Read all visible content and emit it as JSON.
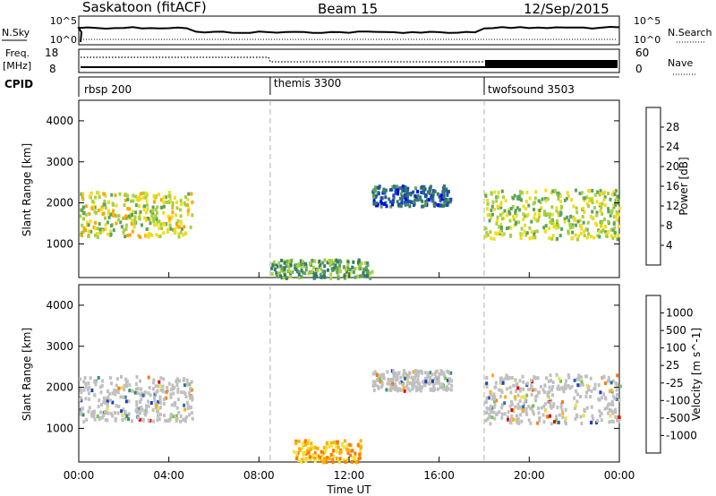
{
  "header": {
    "station": "Saskatoon (fitACF)",
    "beam": "Beam 15",
    "date": "12/Sep/2015"
  },
  "status_panels": {
    "nsky_label": "N.Sky",
    "nsky_ticks": [
      "10^5",
      "10^0"
    ],
    "nsearch_label": "N.Search",
    "nsearch_ticks": [
      "10^5",
      "10^0"
    ],
    "freq_label": "Freq.",
    "freq_unit": "[MHz]",
    "freq_ticks": [
      "18",
      "8"
    ],
    "nave_label": "Nave",
    "nave_ticks": [
      "60",
      "0"
    ],
    "cpid_label": "CPID",
    "cpid_segments": [
      {
        "name": "rbsp 200",
        "start_hour": 0.0
      },
      {
        "name": "themis 3300",
        "start_hour": 8.5
      },
      {
        "name": "twofsound 3503",
        "start_hour": 18.0
      }
    ]
  },
  "x_axis": {
    "label": "Time UT",
    "ticks": [
      "00:00",
      "04:00",
      "08:00",
      "12:00",
      "16:00",
      "20:00",
      "00:00"
    ]
  },
  "colors": {
    "power_scale": [
      "#0000ff",
      "#1f4fa8",
      "#357a6a",
      "#5ca35c",
      "#a6d13d",
      "#f2dc1e",
      "#ffa500",
      "#ff6a00",
      "#e60000"
    ],
    "velocity_scale": [
      "#1f3fb5",
      "#2b6fb5",
      "#3a8f6a",
      "#73c64a",
      "#c0c0c0",
      "#f0e23c",
      "#ffb000",
      "#ff7a00",
      "#e00000"
    ]
  },
  "chart_data": [
    {
      "type": "heatmap",
      "panel": "power",
      "ylabel": "Slant Range [km]",
      "y_ticks": [
        "1000",
        "2000",
        "3000",
        "4000"
      ],
      "ylim": [
        180,
        4500
      ],
      "xlim_hours": [
        0,
        24
      ],
      "colorbar_label": "Power [dB]",
      "colorbar_ticks": [
        "4",
        "8",
        "12",
        "16",
        "20",
        "24",
        "28"
      ],
      "colorbar_range": [
        0,
        32
      ],
      "echo_regions": [
        {
          "t_start": 0.0,
          "t_end": 5.0,
          "range_center": 1750,
          "range_width": 550,
          "power": 18
        },
        {
          "t_start": 13.0,
          "t_end": 16.5,
          "range_center": 2200,
          "range_width": 250,
          "power": 6
        },
        {
          "t_start": 18.0,
          "t_end": 24.0,
          "range_center": 1750,
          "range_width": 600,
          "power": 16
        },
        {
          "t_start": 8.5,
          "t_end": 13.0,
          "range_center": 350,
          "range_width": 300,
          "power": 12
        }
      ]
    },
    {
      "type": "heatmap",
      "panel": "velocity",
      "ylabel": "Slant Range [km]",
      "y_ticks": [
        "1000",
        "2000",
        "3000",
        "4000"
      ],
      "ylim": [
        180,
        4500
      ],
      "xlim_hours": [
        0,
        24
      ],
      "colorbar_label": "Velocity [m s^-1]",
      "colorbar_ticks": [
        "1000",
        "500",
        "100",
        "25",
        "-25",
        "-100",
        "-500",
        "-1000"
      ],
      "echo_regions": [
        {
          "t_start": 0.0,
          "t_end": 5.0,
          "range_center": 1750,
          "range_width": 550,
          "velocity": 0
        },
        {
          "t_start": 13.0,
          "t_end": 16.5,
          "range_center": 2200,
          "range_width": 250,
          "velocity": 0
        },
        {
          "t_start": 18.0,
          "t_end": 24.0,
          "range_center": 1750,
          "range_width": 600,
          "velocity": 0
        },
        {
          "t_start": 9.5,
          "t_end": 12.5,
          "range_center": 400,
          "range_width": 350,
          "velocity": -100
        }
      ]
    }
  ]
}
